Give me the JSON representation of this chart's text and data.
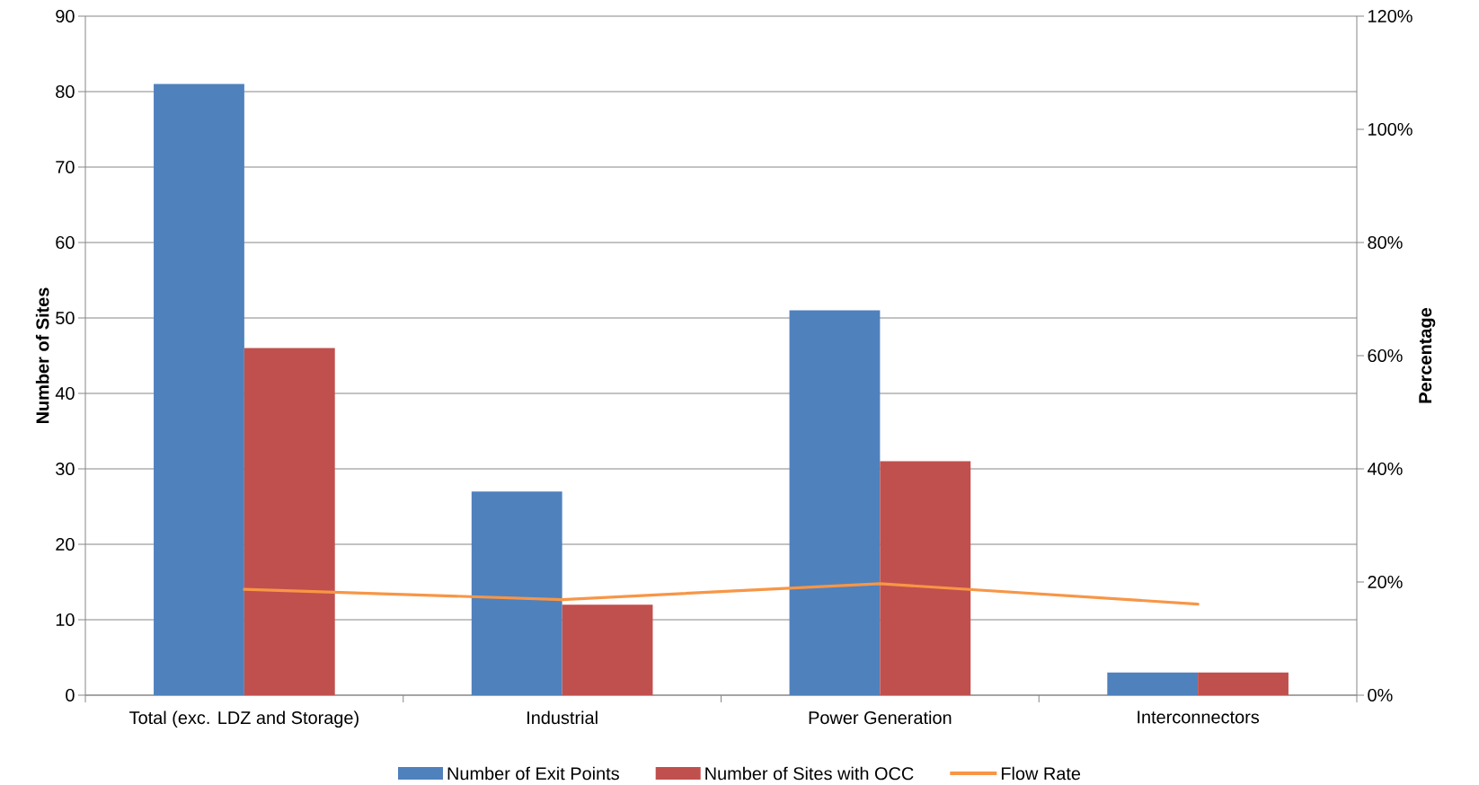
{
  "chart_data": {
    "type": "bar",
    "categories": [
      "Total (exc. LDZ and Storage)",
      "Industrial",
      "Power Generation",
      "Interconnectors"
    ],
    "series": [
      {
        "name": "Number of Exit Points",
        "color": "#4f81bd",
        "values": [
          81,
          27,
          51,
          3
        ]
      },
      {
        "name": "Number of Sites with OCC",
        "color": "#c0504d",
        "values": [
          46,
          12,
          31,
          3
        ]
      },
      {
        "name": "Flow Rate",
        "type": "line",
        "axis": "y2",
        "color": "#f79646",
        "values": [
          18.7,
          16.9,
          19.7,
          16.1
        ]
      }
    ],
    "ylabel": "Number of Sites",
    "y2label": "Percentage",
    "ylim": [
      0,
      90
    ],
    "yticks": [
      0,
      10,
      20,
      30,
      40,
      50,
      60,
      70,
      80,
      90
    ],
    "y2lim": [
      0,
      120
    ],
    "y2ticks": [
      {
        "value": 0,
        "label": "0%"
      },
      {
        "value": 20,
        "label": "20%"
      },
      {
        "value": 40,
        "label": "40%"
      },
      {
        "value": 60,
        "label": "60%"
      },
      {
        "value": 80,
        "label": "80%"
      },
      {
        "value": 100,
        "label": "100%"
      },
      {
        "value": 120,
        "label": "120%"
      }
    ],
    "grid": "y",
    "legend": "bottom"
  }
}
